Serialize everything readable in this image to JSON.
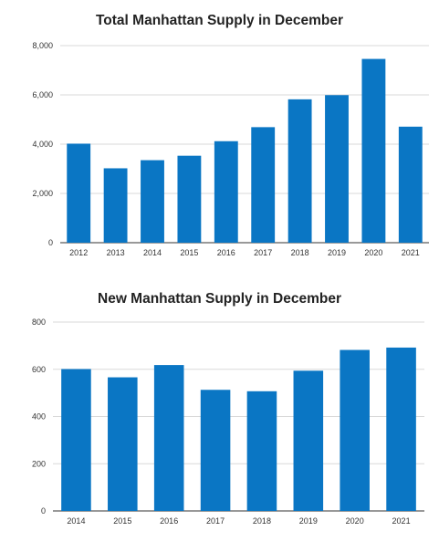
{
  "colors": {
    "bar": "#0a76c4",
    "grid": "#d9d9d9",
    "axis": "#333333"
  },
  "chart_data": [
    {
      "type": "bar",
      "title": "Total Manhattan Supply in December",
      "categories": [
        "2012",
        "2013",
        "2014",
        "2015",
        "2016",
        "2017",
        "2018",
        "2019",
        "2020",
        "2021"
      ],
      "values": [
        4020,
        3020,
        3350,
        3530,
        4120,
        4690,
        5820,
        5990,
        7460,
        4710
      ],
      "ylim": [
        0,
        8000
      ],
      "yticks": [
        0,
        2000,
        4000,
        6000,
        8000
      ],
      "ytick_labels": [
        "0",
        "2,000",
        "4,000",
        "6,000",
        "8,000"
      ],
      "grid": true,
      "xlabel": "",
      "ylabel": ""
    },
    {
      "type": "bar",
      "title": "New Manhattan Supply in December",
      "categories": [
        "2014",
        "2015",
        "2016",
        "2017",
        "2018",
        "2019",
        "2020",
        "2021"
      ],
      "values": [
        601,
        566,
        618,
        513,
        507,
        594,
        682,
        692
      ],
      "ylim": [
        0,
        800
      ],
      "yticks": [
        0,
        200,
        400,
        600,
        800
      ],
      "ytick_labels": [
        "0",
        "200",
        "400",
        "600",
        "800"
      ],
      "grid": true,
      "xlabel": "",
      "ylabel": ""
    }
  ]
}
